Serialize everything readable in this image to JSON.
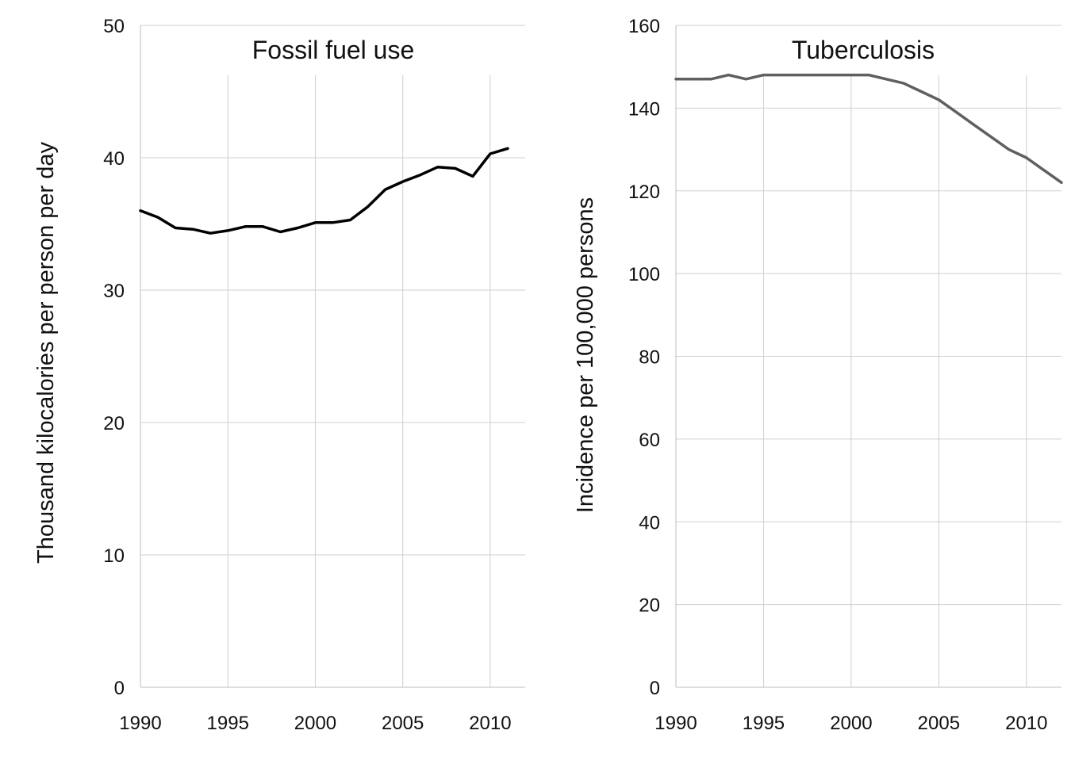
{
  "chart_data": [
    {
      "type": "line",
      "title": "Fossil fuel use",
      "xlabel": "",
      "ylabel": "Thousand kilocalories per person per day",
      "xlim": [
        1990,
        2012
      ],
      "ylim": [
        0,
        50
      ],
      "xticks": [
        1990,
        1995,
        2000,
        2005,
        2010
      ],
      "yticks": [
        0,
        10,
        20,
        30,
        40,
        50
      ],
      "xtick_labels": [
        "1990",
        "1995",
        "2000",
        "2005",
        "2010"
      ],
      "ytick_labels": [
        "0",
        "10",
        "20",
        "30",
        "40",
        "50"
      ],
      "grid": true,
      "legend": "none",
      "series": [
        {
          "color": "#000000",
          "x": [
            1990,
            1991,
            1992,
            1993,
            1994,
            1995,
            1996,
            1997,
            1998,
            1999,
            2000,
            2001,
            2002,
            2003,
            2004,
            2005,
            2006,
            2007,
            2008,
            2009,
            2010,
            2011
          ],
          "y": [
            36.0,
            35.5,
            34.7,
            34.6,
            34.3,
            34.5,
            34.8,
            34.8,
            34.4,
            34.7,
            35.1,
            35.1,
            35.3,
            36.3,
            37.6,
            38.2,
            38.7,
            39.3,
            39.2,
            38.6,
            40.3,
            40.7
          ]
        }
      ]
    },
    {
      "type": "line",
      "title": "Tuberculosis",
      "xlabel": "",
      "ylabel": "Incidence per 100,000 persons",
      "xlim": [
        1990,
        2012
      ],
      "ylim": [
        0,
        160
      ],
      "xticks": [
        1990,
        1995,
        2000,
        2005,
        2010
      ],
      "yticks": [
        0,
        20,
        40,
        60,
        80,
        100,
        120,
        140,
        160
      ],
      "xtick_labels": [
        "1990",
        "1995",
        "2000",
        "2005",
        "2010"
      ],
      "ytick_labels": [
        "0",
        "20",
        "40",
        "60",
        "80",
        "100",
        "120",
        "140",
        "160"
      ],
      "grid": true,
      "legend": "none",
      "series": [
        {
          "color": "#5f5f5f",
          "x": [
            1990,
            1991,
            1992,
            1993,
            1994,
            1995,
            1996,
            1997,
            1998,
            1999,
            2000,
            2001,
            2002,
            2003,
            2004,
            2005,
            2006,
            2007,
            2008,
            2009,
            2010,
            2011,
            2012
          ],
          "y": [
            147,
            147,
            147,
            148,
            147,
            148,
            148,
            148,
            148,
            148,
            148,
            148,
            147,
            146,
            144,
            142,
            139,
            136,
            133,
            130,
            128,
            125,
            122
          ]
        }
      ]
    }
  ]
}
